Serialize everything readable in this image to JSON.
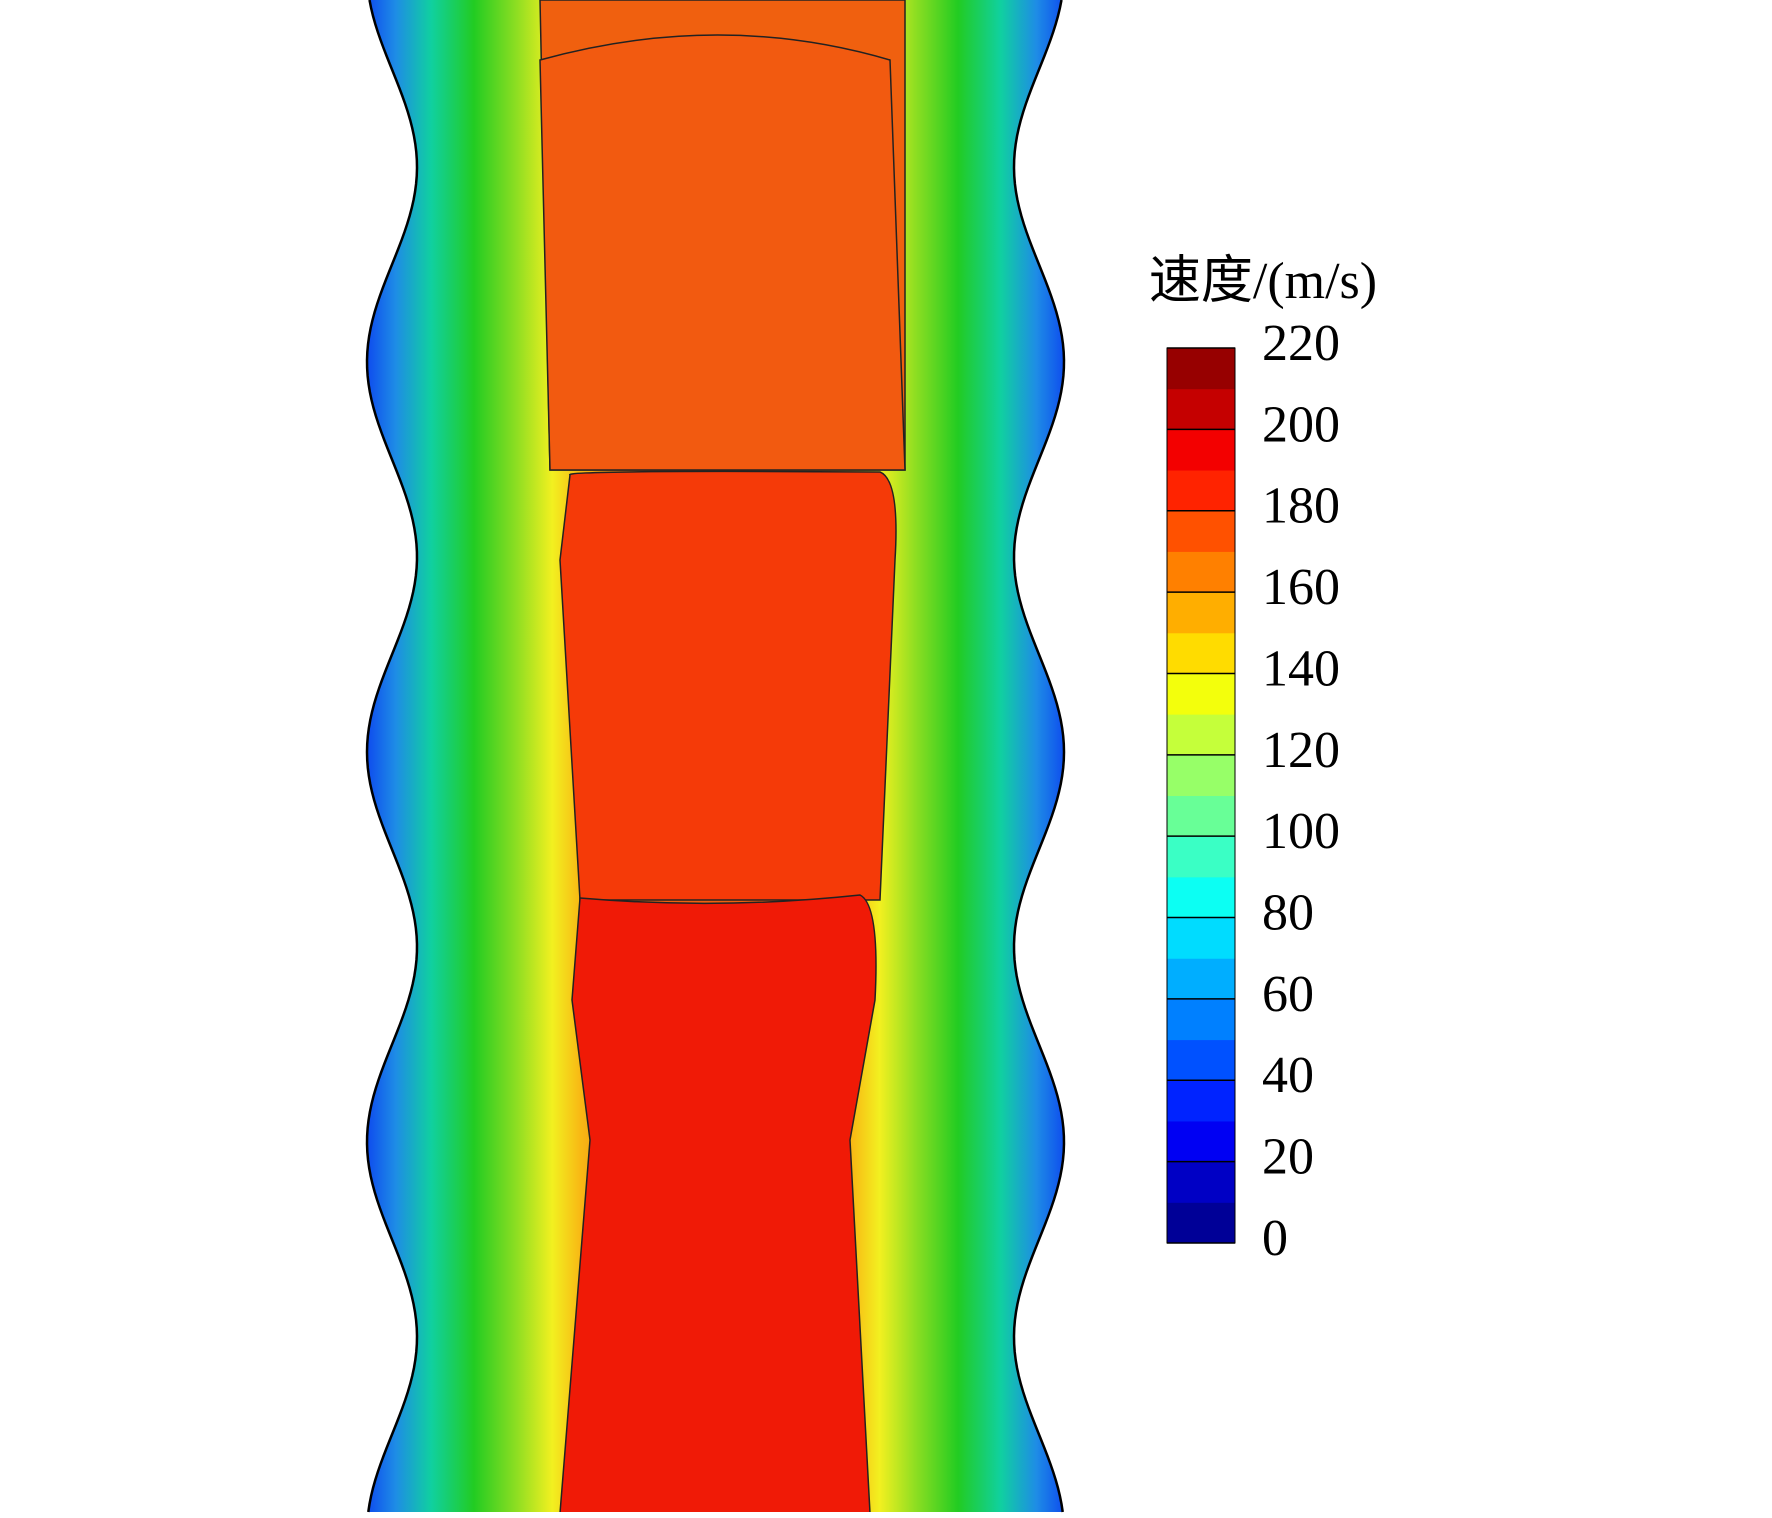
{
  "chart_data": {
    "type": "contour",
    "colorbar": {
      "title": "速度/(m/s)",
      "lim": [
        0,
        220
      ],
      "ticks": [
        0,
        20,
        40,
        60,
        80,
        100,
        120,
        140,
        160,
        180,
        200,
        220
      ]
    }
  }
}
